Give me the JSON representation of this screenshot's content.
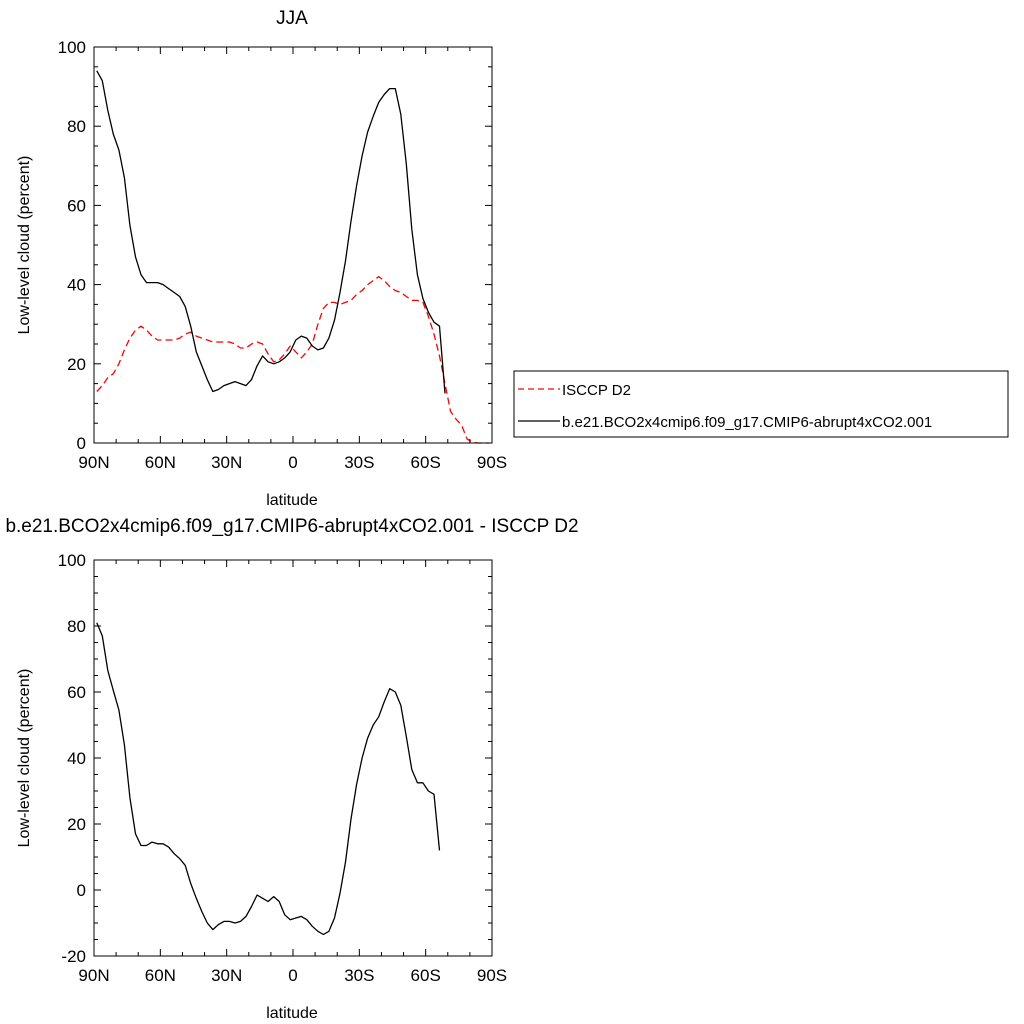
{
  "chart_data": [
    {
      "type": "line",
      "title": "JJA",
      "xlabel": "latitude",
      "ylabel": "Low-level cloud (percent)",
      "xlim": [
        90,
        -90
      ],
      "ylim": [
        0,
        100
      ],
      "xticks": [
        90,
        60,
        30,
        0,
        -30,
        -60,
        -90
      ],
      "xticklabels": [
        "90N",
        "60N",
        "30N",
        "0",
        "30S",
        "60S",
        "90S"
      ],
      "yticks": [
        0,
        20,
        40,
        60,
        80,
        100
      ],
      "yticklabels": [
        "0",
        "20",
        "40",
        "60",
        "80",
        "100"
      ],
      "legend": "right",
      "series": [
        {
          "name": "ISCCP D2",
          "color": "#ff0000",
          "dash": "dashed",
          "points": [
            [
              88.75,
              13
            ],
            [
              86.25,
              14.5
            ],
            [
              83.75,
              16.5
            ],
            [
              81.25,
              17.5
            ],
            [
              78.75,
              20
            ],
            [
              76.25,
              23.5
            ],
            [
              73.75,
              26.5
            ],
            [
              71.25,
              28.5
            ],
            [
              68.75,
              29.5
            ],
            [
              66.25,
              28.5
            ],
            [
              63.75,
              27
            ],
            [
              61.25,
              26
            ],
            [
              58.75,
              26
            ],
            [
              56.25,
              26
            ],
            [
              53.75,
              26
            ],
            [
              51.25,
              26.5
            ],
            [
              48.75,
              27.5
            ],
            [
              46.25,
              28
            ],
            [
              43.75,
              27
            ],
            [
              41.25,
              26.5
            ],
            [
              38.75,
              26
            ],
            [
              36.25,
              25.5
            ],
            [
              33.75,
              25.5
            ],
            [
              31.25,
              25.5
            ],
            [
              28.75,
              25.5
            ],
            [
              26.25,
              25
            ],
            [
              23.75,
              24
            ],
            [
              21.25,
              24
            ],
            [
              18.75,
              25
            ],
            [
              16.25,
              25.5
            ],
            [
              13.75,
              25
            ],
            [
              11.25,
              22.5
            ],
            [
              8.75,
              20.5
            ],
            [
              6.25,
              21
            ],
            [
              3.75,
              22.5
            ],
            [
              1.25,
              24.5
            ],
            [
              -1.25,
              23
            ],
            [
              -3.75,
              21.5
            ],
            [
              -6.25,
              23
            ],
            [
              -8.75,
              25
            ],
            [
              -11.25,
              30
            ],
            [
              -13.75,
              34
            ],
            [
              -16.25,
              35.5
            ],
            [
              -18.75,
              35.5
            ],
            [
              -21.25,
              35
            ],
            [
              -23.75,
              35.5
            ],
            [
              -26.25,
              36
            ],
            [
              -28.75,
              37.5
            ],
            [
              -31.25,
              38.5
            ],
            [
              -33.75,
              40
            ],
            [
              -36.25,
              41
            ],
            [
              -38.75,
              42
            ],
            [
              -41.25,
              41
            ],
            [
              -43.75,
              39.5
            ],
            [
              -46.25,
              38.5
            ],
            [
              -48.75,
              38
            ],
            [
              -51.25,
              37
            ],
            [
              -53.75,
              36
            ],
            [
              -56.25,
              36
            ],
            [
              -58.75,
              35.5
            ],
            [
              -61.25,
              32
            ],
            [
              -63.75,
              27.5
            ],
            [
              -66.25,
              22
            ],
            [
              -68.75,
              15
            ],
            [
              -71.25,
              8
            ],
            [
              -73.75,
              6
            ],
            [
              -76.25,
              4.5
            ],
            [
              -78.75,
              1
            ],
            [
              -81.25,
              0.2
            ],
            [
              -83.75,
              0
            ],
            [
              -86.25,
              0
            ],
            [
              -88.75,
              0
            ]
          ]
        },
        {
          "name": "b.e21.BCO2x4cmip6.f09_g17.CMIP6-abrupt4xCO2.001",
          "color": "#000000",
          "dash": "solid",
          "points": [
            [
              88.75,
              94
            ],
            [
              86.25,
              91.5
            ],
            [
              83.75,
              84
            ],
            [
              81.25,
              78
            ],
            [
              78.75,
              74
            ],
            [
              76.25,
              67
            ],
            [
              73.75,
              55
            ],
            [
              71.25,
              47
            ],
            [
              68.75,
              42.5
            ],
            [
              66.25,
              40.5
            ],
            [
              63.75,
              40.5
            ],
            [
              61.25,
              40.5
            ],
            [
              58.75,
              40
            ],
            [
              56.25,
              39
            ],
            [
              53.75,
              38
            ],
            [
              51.25,
              37
            ],
            [
              48.75,
              34.5
            ],
            [
              46.25,
              29.5
            ],
            [
              43.75,
              23
            ],
            [
              41.25,
              19.5
            ],
            [
              38.75,
              16
            ],
            [
              36.25,
              13
            ],
            [
              33.75,
              13.5
            ],
            [
              31.25,
              14.5
            ],
            [
              28.75,
              15
            ],
            [
              26.25,
              15.5
            ],
            [
              23.75,
              15
            ],
            [
              21.25,
              14.5
            ],
            [
              18.75,
              16
            ],
            [
              16.25,
              19.5
            ],
            [
              13.75,
              22
            ],
            [
              11.25,
              20.5
            ],
            [
              8.75,
              20
            ],
            [
              6.25,
              20.5
            ],
            [
              3.75,
              21.5
            ],
            [
              1.25,
              23
            ],
            [
              -1.25,
              26
            ],
            [
              -3.75,
              27
            ],
            [
              -6.25,
              26.5
            ],
            [
              -8.75,
              24.5
            ],
            [
              -11.25,
              23.5
            ],
            [
              -13.75,
              24
            ],
            [
              -16.25,
              26.5
            ],
            [
              -18.75,
              31
            ],
            [
              -21.25,
              38
            ],
            [
              -23.75,
              46
            ],
            [
              -26.25,
              56
            ],
            [
              -28.75,
              65
            ],
            [
              -31.25,
              72.5
            ],
            [
              -33.75,
              78.5
            ],
            [
              -36.25,
              82.5
            ],
            [
              -38.75,
              86
            ],
            [
              -41.25,
              88
            ],
            [
              -43.75,
              89.5
            ],
            [
              -46.25,
              89.5
            ],
            [
              -48.75,
              83
            ],
            [
              -51.25,
              70.5
            ],
            [
              -53.75,
              54
            ],
            [
              -56.25,
              42.5
            ],
            [
              -58.75,
              36.5
            ],
            [
              -61.25,
              33
            ],
            [
              -63.75,
              30.5
            ],
            [
              -66.25,
              29.5
            ],
            [
              -68.75,
              12.5
            ]
          ]
        }
      ]
    },
    {
      "type": "line",
      "title": "b.e21.BCO2x4cmip6.f09_g17.CMIP6-abrupt4xCO2.001 - ISCCP D2",
      "xlabel": "latitude",
      "ylabel": "Low-level cloud (percent)",
      "xlim": [
        90,
        -90
      ],
      "ylim": [
        -20,
        100
      ],
      "xticks": [
        90,
        60,
        30,
        0,
        -30,
        -60,
        -90
      ],
      "xticklabels": [
        "90N",
        "60N",
        "30N",
        "0",
        "30S",
        "60S",
        "90S"
      ],
      "yticks": [
        -20,
        0,
        20,
        40,
        60,
        80,
        100
      ],
      "yticklabels": [
        "-20",
        "0",
        "20",
        "40",
        "60",
        "80",
        "100"
      ],
      "series": [
        {
          "color": "#000000",
          "dash": "solid",
          "points": [
            [
              88.75,
              81
            ],
            [
              86.25,
              77
            ],
            [
              83.75,
              66.5
            ],
            [
              81.25,
              60.5
            ],
            [
              78.75,
              54.5
            ],
            [
              76.25,
              44
            ],
            [
              73.75,
              28
            ],
            [
              71.25,
              17
            ],
            [
              68.75,
              13.5
            ],
            [
              66.25,
              13.5
            ],
            [
              63.75,
              14.5
            ],
            [
              61.25,
              14
            ],
            [
              58.75,
              14
            ],
            [
              56.25,
              13
            ],
            [
              53.75,
              11
            ],
            [
              51.25,
              9.5
            ],
            [
              48.75,
              7.5
            ],
            [
              46.25,
              2
            ],
            [
              43.75,
              -2.5
            ],
            [
              41.25,
              -6.5
            ],
            [
              38.75,
              -10
            ],
            [
              36.25,
              -12
            ],
            [
              33.75,
              -10.5
            ],
            [
              31.25,
              -9.5
            ],
            [
              28.75,
              -9.5
            ],
            [
              26.25,
              -10
            ],
            [
              23.75,
              -9.5
            ],
            [
              21.25,
              -8
            ],
            [
              18.75,
              -5
            ],
            [
              16.25,
              -1.5
            ],
            [
              13.75,
              -2.5
            ],
            [
              11.25,
              -3.5
            ],
            [
              8.75,
              -2
            ],
            [
              6.25,
              -3.5
            ],
            [
              3.75,
              -7.5
            ],
            [
              1.25,
              -9
            ],
            [
              -1.25,
              -8.5
            ],
            [
              -3.75,
              -8
            ],
            [
              -6.25,
              -9
            ],
            [
              -8.75,
              -11
            ],
            [
              -11.25,
              -12.5
            ],
            [
              -13.75,
              -13.5
            ],
            [
              -16.25,
              -12.5
            ],
            [
              -18.75,
              -8.5
            ],
            [
              -21.25,
              -1
            ],
            [
              -23.75,
              8.5
            ],
            [
              -26.25,
              21.5
            ],
            [
              -28.75,
              32
            ],
            [
              -31.25,
              40
            ],
            [
              -33.75,
              46
            ],
            [
              -36.25,
              50
            ],
            [
              -38.75,
              52.5
            ],
            [
              -41.25,
              57
            ],
            [
              -43.75,
              61
            ],
            [
              -46.25,
              60
            ],
            [
              -48.75,
              56
            ],
            [
              -51.25,
              46.5
            ],
            [
              -53.75,
              36.5
            ],
            [
              -56.25,
              32.5
            ],
            [
              -58.75,
              32.5
            ],
            [
              -61.25,
              30
            ],
            [
              -63.75,
              29
            ],
            [
              -66.25,
              12
            ]
          ]
        }
      ]
    }
  ]
}
